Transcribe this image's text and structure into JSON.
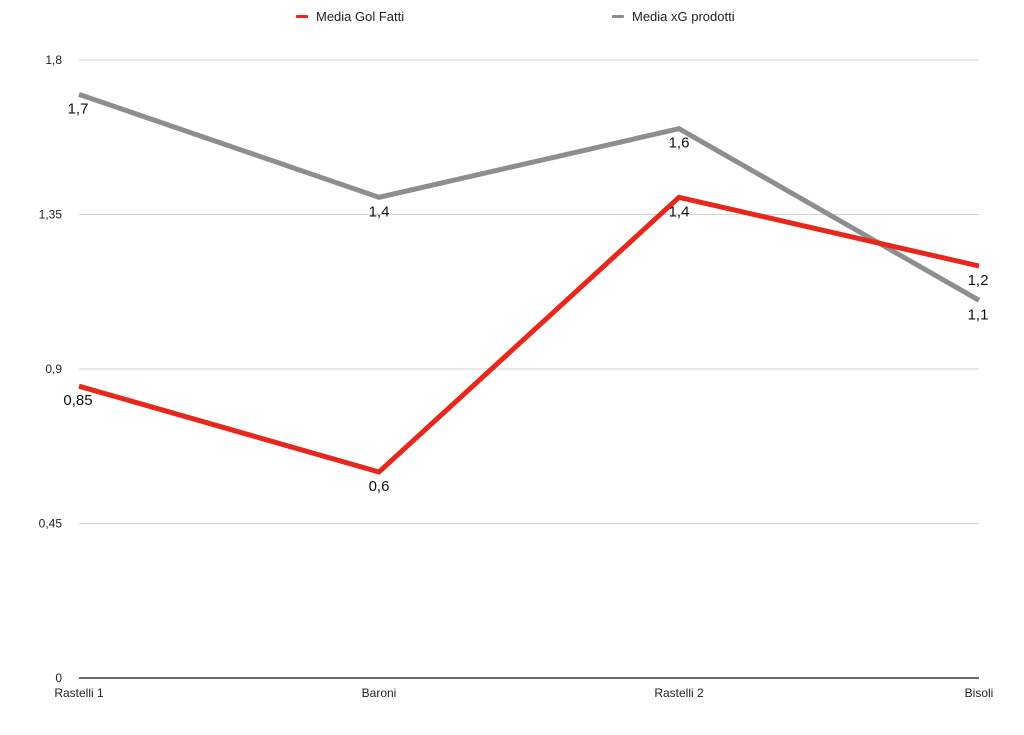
{
  "chart_data": {
    "type": "line",
    "categories": [
      "Rastelli 1",
      "Baroni",
      "Rastelli 2",
      "Bisoli"
    ],
    "series": [
      {
        "name": "Media Gol Fatti",
        "color": "#e8261a",
        "values": [
          0.85,
          0.6,
          1.4,
          1.2
        ],
        "labels": [
          "0,85",
          "0,6",
          "1,4",
          "1,2"
        ]
      },
      {
        "name": "Media xG prodotti",
        "color": "#8e8e8e",
        "values": [
          1.7,
          1.4,
          1.6,
          1.1
        ],
        "labels": [
          "1,7",
          "1,4",
          "1,6",
          "1,1"
        ]
      }
    ],
    "yticks": [
      0,
      0.45,
      0.9,
      1.35,
      1.8
    ],
    "ytick_labels": [
      "0",
      "0,45",
      "0,9",
      "1,35",
      "1,8"
    ],
    "ylim": [
      0,
      1.8
    ],
    "grid": true,
    "legend_position": "top-center",
    "title": "",
    "xlabel": "",
    "ylabel": ""
  }
}
